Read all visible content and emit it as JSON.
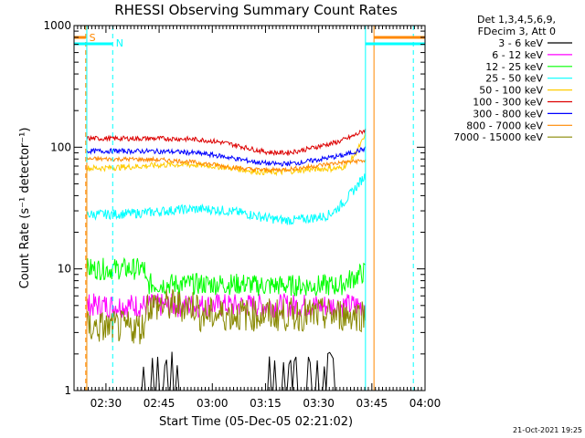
{
  "chart_data": {
    "type": "line",
    "title": "RHESSI Observing Summary Count Rates",
    "xlabel": "Start Time (05-Dec-05 02:21:02)",
    "ylabel": "Count Rate (s⁻¹ detector⁻¹)",
    "yscale": "log",
    "ylim": [
      1,
      1000
    ],
    "xlim_minutes_from_0221": [
      0,
      99
    ],
    "x_ticks": [
      {
        "label": "02:30",
        "min": 9
      },
      {
        "label": "02:45",
        "min": 24
      },
      {
        "label": "03:00",
        "min": 39
      },
      {
        "label": "03:15",
        "min": 54
      },
      {
        "label": "03:30",
        "min": 69
      },
      {
        "label": "03:45",
        "min": 84
      },
      {
        "label": "04:00",
        "min": 99
      }
    ],
    "y_ticks": [
      {
        "label": "1",
        "v": 1
      },
      {
        "label": "10",
        "v": 10
      },
      {
        "label": "100",
        "v": 100
      },
      {
        "label": "1000",
        "v": 1000
      }
    ],
    "legend": {
      "header1": "Det 1,3,4,5,6,9,",
      "header2": "FDecim 3, Att 0",
      "placement": "right"
    },
    "series": [
      {
        "name": "3 - 6 keV",
        "color": "#000000"
      },
      {
        "name": "6 - 12 keV",
        "color": "#ff00ff"
      },
      {
        "name": "12 - 25 keV",
        "color": "#00ff00"
      },
      {
        "name": "25 - 50 keV",
        "color": "#00ffff"
      },
      {
        "name": "50 - 100 keV",
        "color": "#ffcc00"
      },
      {
        "name": "100 - 300 keV",
        "color": "#dd0000"
      },
      {
        "name": "300 - 800 keV",
        "color": "#0000ff"
      },
      {
        "name": "800 - 7000 keV",
        "color": "#ff8800"
      },
      {
        "name": "7000 - 15000 keV",
        "color": "#888800"
      }
    ],
    "markers": [
      {
        "label": "S",
        "color": "#ff8800"
      },
      {
        "label": "N",
        "color": "#00ffff"
      }
    ]
  },
  "footer": {
    "timestamp": "21-Oct-2021 19:25"
  }
}
